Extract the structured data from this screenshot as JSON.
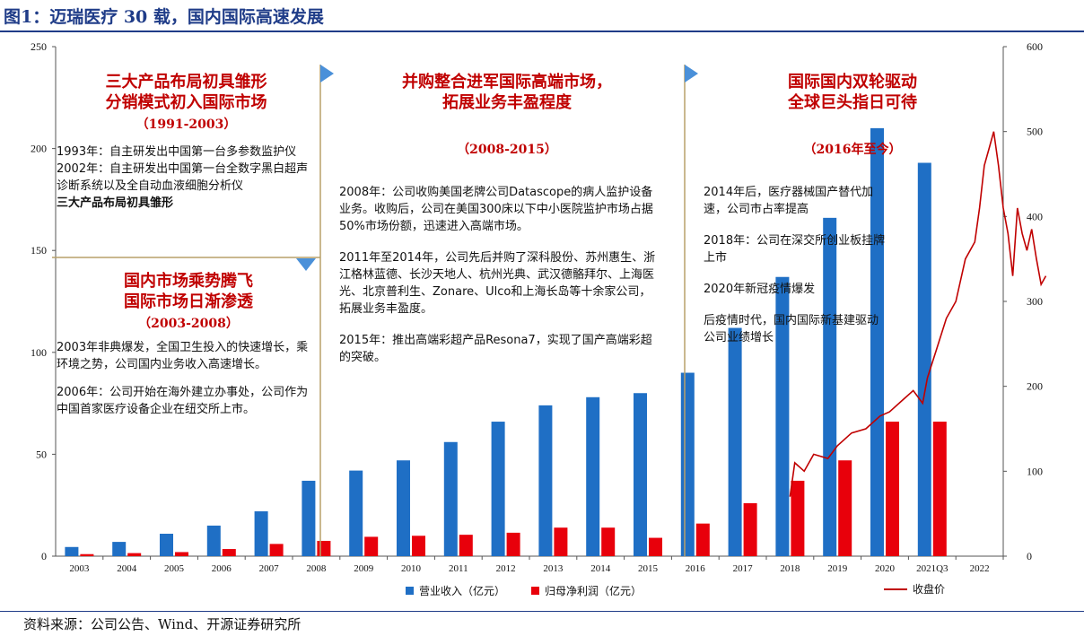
{
  "figure_title": "图1：迈瑞医疗 30 载，国内国际高速发展",
  "source": "资料来源：公司公告、Wind、开源证券研究所",
  "chart_data": {
    "type": "bar",
    "categories": [
      "2003",
      "2004",
      "2005",
      "2006",
      "2007",
      "2008",
      "2009",
      "2010",
      "2011",
      "2012",
      "2013",
      "2014",
      "2015",
      "2016",
      "2017",
      "2018",
      "2019",
      "2020",
      "2021Q3",
      "2022"
    ],
    "series": [
      {
        "name": "营业收入（亿元）",
        "color": "#1f6fc5",
        "values": [
          4.5,
          7,
          11,
          15,
          22,
          37,
          42,
          47,
          56,
          66,
          74,
          78,
          80,
          90,
          112,
          137,
          166,
          210,
          193,
          null
        ]
      },
      {
        "name": "归母净利润（亿元）",
        "color": "#e8000b",
        "values": [
          1,
          1.5,
          2,
          3.5,
          6,
          7.5,
          9.5,
          10,
          10.5,
          11.5,
          14,
          14,
          9,
          16,
          26,
          37,
          47,
          66,
          66,
          null
        ]
      }
    ],
    "line_series": {
      "name": "收盘价",
      "color": "#c00000",
      "axis": "right",
      "points": [
        [
          15.0,
          70
        ],
        [
          15.1,
          110
        ],
        [
          15.3,
          100
        ],
        [
          15.5,
          120
        ],
        [
          15.8,
          115
        ],
        [
          16.0,
          130
        ],
        [
          16.3,
          145
        ],
        [
          16.6,
          150
        ],
        [
          16.9,
          165
        ],
        [
          17.1,
          170
        ],
        [
          17.4,
          185
        ],
        [
          17.6,
          195
        ],
        [
          17.8,
          180
        ],
        [
          17.9,
          210
        ],
        [
          18.1,
          245
        ],
        [
          18.3,
          280
        ],
        [
          18.5,
          300
        ],
        [
          18.7,
          350
        ],
        [
          18.9,
          370
        ],
        [
          19.0,
          410
        ],
        [
          19.1,
          460
        ],
        [
          19.2,
          480
        ],
        [
          19.3,
          500
        ],
        [
          19.4,
          460
        ],
        [
          19.5,
          410
        ],
        [
          19.6,
          380
        ],
        [
          19.7,
          330
        ],
        [
          19.8,
          410
        ],
        [
          19.9,
          380
        ],
        [
          20.0,
          360
        ],
        [
          20.1,
          385
        ],
        [
          20.2,
          350
        ],
        [
          20.3,
          320
        ],
        [
          20.4,
          330
        ]
      ]
    },
    "left_axis": {
      "min": 0,
      "max": 250,
      "ticks": [
        0,
        50,
        100,
        150,
        200,
        250
      ]
    },
    "right_axis": {
      "min": 0,
      "max": 600,
      "ticks": [
        0,
        100,
        200,
        300,
        400,
        500,
        600
      ]
    },
    "legend": [
      "营业收入（亿元）",
      "归母净利润（亿元）",
      "收盘价"
    ],
    "grid": false
  },
  "phases": [
    {
      "head": [
        "三大产品布局初具雏形",
        "分销模式初入国际市场"
      ],
      "years": "（1991-2003）",
      "text": [
        "1993年：自主研发出中国第一台多参数监护仪",
        "2002年：自主研发出中国第一台全数字黑白超声诊断系统以及全自动血液细胞分析仪",
        "三大产品布局初具雏形"
      ]
    },
    {
      "head": [
        "国内市场乘势腾飞",
        "国际市场日渐渗透"
      ],
      "years": "（2003-2008）",
      "text": [
        "2003年非典爆发，全国卫生投入的快速增长，乘环境之势，公司国内业务收入高速增长。",
        "2006年：公司开始在海外建立办事处，公司作为中国首家医疗设备企业在纽交所上市。"
      ]
    },
    {
      "head": [
        "并购整合进军国际高端市场，",
        "拓展业务丰盈程度"
      ],
      "years": "（2008-2015）",
      "text": [
        "2008年：公司收购美国老牌公司Datascope的病人监护设备业务。收购后，公司在美国300床以下中小医院监护市场占据50%市场份额，迅速进入高端市场。",
        "2011年至2014年，公司先后并购了深科股份、苏州惠生、浙江格林蓝德、长沙天地人、杭州光典、武汉德骼拜尔、上海医光、北京普利生、Zonare、Ulco和上海长岛等十余家公司，拓展业务丰盈度。",
        "2015年：推出高端彩超产品Resona7，实现了国产高端彩超的突破。"
      ]
    },
    {
      "head": [
        "国际国内双轮驱动",
        "全球巨头指日可待"
      ],
      "years": "（2016年至今）",
      "text": [
        "2014年后，医疗器械国产替代加速，公司市占率提高",
        "2018年：公司在深交所创业板挂牌上市",
        "2020年新冠疫情爆发",
        "后疫情时代，国内国际新基建驱动公司业绩增长"
      ]
    }
  ]
}
